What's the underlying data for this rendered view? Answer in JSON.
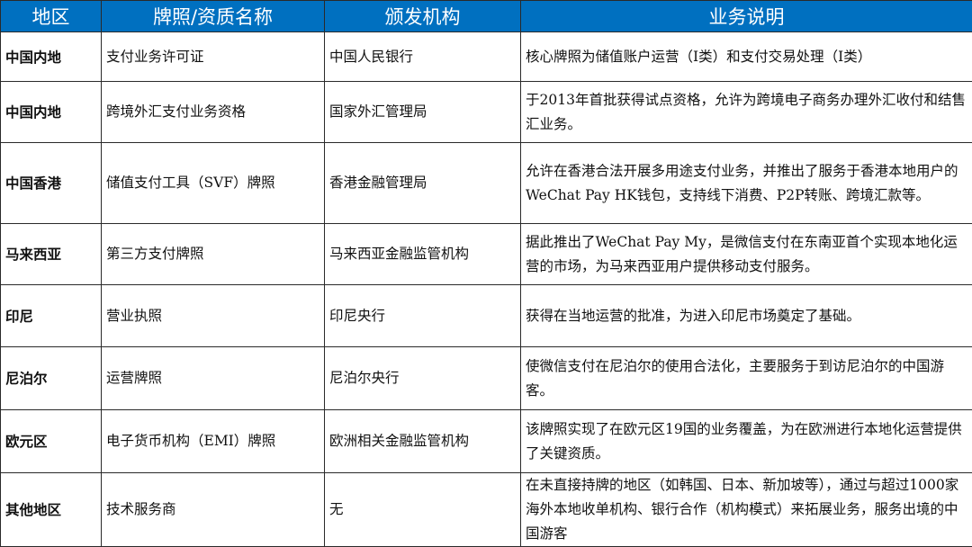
{
  "header_color": "#0070c0",
  "headers": [
    "地区",
    "牌照/资质名称",
    "颁发机构",
    "业务说明"
  ],
  "rows": [
    {
      "region": "中国内地",
      "license": "支付业务许可证",
      "issuer": "中国人民银行",
      "description": "核心牌照为储值账户运营（Ⅰ类）和支付交易处理（Ⅰ类）"
    },
    {
      "region": "中国内地",
      "license": "跨境外汇支付业务资格",
      "issuer": "国家外汇管理局",
      "description": "于2013年首批获得试点资格，允许为跨境电子商务办理外汇收付和结售汇业务。"
    },
    {
      "region": "中国香港",
      "license": "储值支付工具（SVF）牌照",
      "issuer": "香港金融管理局",
      "description": "允许在香港合法开展多用途支付业务，并推出了服务于香港本地用户的WeChat Pay HK钱包，支持线下消费、P2P转账、跨境汇款等。"
    },
    {
      "region": "马来西亚",
      "license": "第三方支付牌照",
      "issuer": "马来西亚金融监管机构",
      "description": "据此推出了WeChat Pay My，是微信支付在东南亚首个实现本地化运营的市场，为马来西亚用户提供移动支付服务。"
    },
    {
      "region": "印尼",
      "license": "营业执照",
      "issuer": "印尼央行",
      "description": "获得在当地运营的批准，为进入印尼市场奠定了基础。"
    },
    {
      "region": "尼泊尔",
      "license": "运营牌照",
      "issuer": "尼泊尔央行",
      "description": "使微信支付在尼泊尔的使用合法化，主要服务于到访尼泊尔的中国游客。"
    },
    {
      "region": "欧元区",
      "license": "电子货币机构（EMI）牌照",
      "issuer": "欧洲相关金融监管机构",
      "description": "该牌照实现了在欧元区19国的业务覆盖，为在欧洲进行本地化运营提供了关键资质。"
    },
    {
      "region": "其他地区",
      "license": "技术服务商",
      "issuer": "无",
      "description": "在未直接持牌的地区（如韩国、日本、新加坡等），通过与超过1000家海外本地收单机构、银行合作（机构模式）来拓展业务，服务出境的中国游客"
    }
  ]
}
